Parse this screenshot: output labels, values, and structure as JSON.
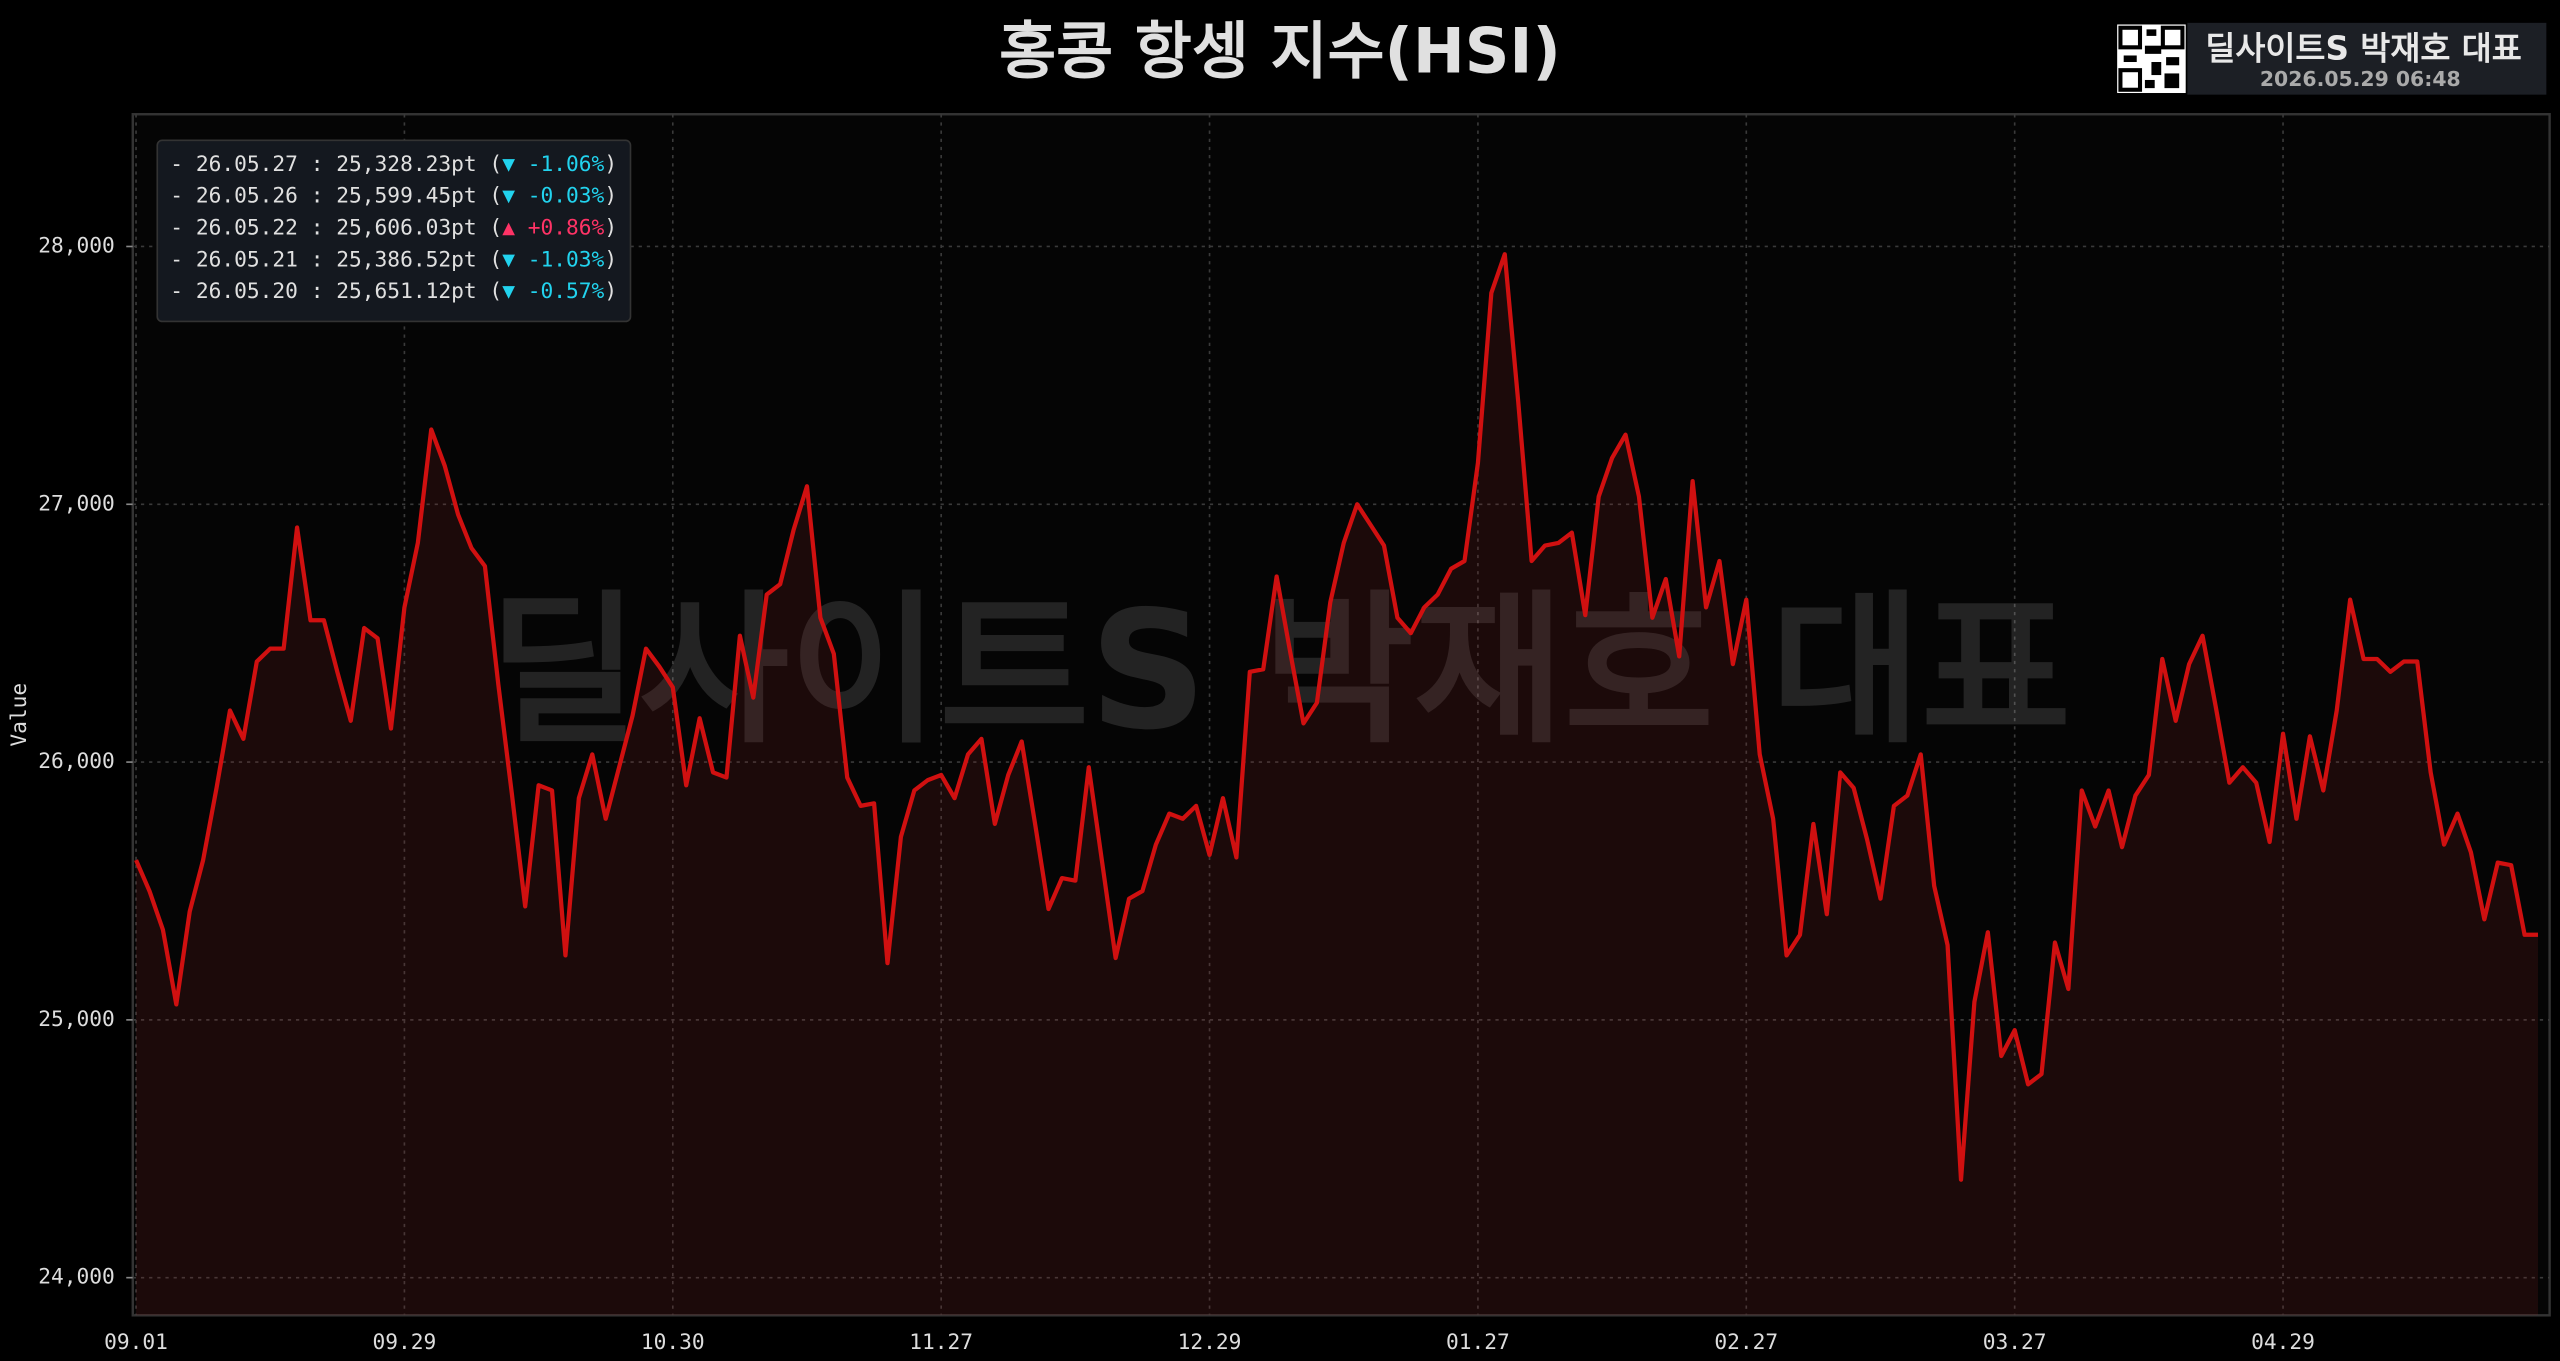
{
  "chart_data": {
    "type": "line",
    "title": "홍콩 항셍 지수(HSI)",
    "y_label": "Value",
    "watermark": "딜사이트S 박재호 대표",
    "badge": {
      "name": "딜사이트S 박재호 대표",
      "timestamp": "2026.05.29 06:48"
    },
    "categories": [
      "09.01",
      null,
      null,
      null,
      null,
      null,
      null,
      null,
      null,
      null,
      null,
      null,
      null,
      null,
      null,
      null,
      null,
      null,
      null,
      null,
      "09.29",
      null,
      null,
      null,
      null,
      null,
      null,
      null,
      null,
      null,
      null,
      null,
      null,
      null,
      null,
      null,
      null,
      null,
      null,
      null,
      "10.30",
      null,
      null,
      null,
      null,
      null,
      null,
      null,
      null,
      null,
      null,
      null,
      null,
      null,
      null,
      null,
      null,
      null,
      null,
      null,
      "11.27",
      null,
      null,
      null,
      null,
      null,
      null,
      null,
      null,
      null,
      null,
      null,
      null,
      null,
      null,
      null,
      null,
      null,
      null,
      null,
      "12.29",
      null,
      null,
      null,
      null,
      null,
      null,
      null,
      null,
      null,
      null,
      null,
      null,
      null,
      null,
      null,
      null,
      null,
      null,
      null,
      "01.27",
      null,
      null,
      null,
      null,
      null,
      null,
      null,
      null,
      null,
      null,
      null,
      null,
      null,
      null,
      null,
      null,
      null,
      null,
      null,
      "02.27",
      null,
      null,
      null,
      null,
      null,
      null,
      null,
      null,
      null,
      null,
      null,
      null,
      null,
      null,
      null,
      null,
      null,
      null,
      null,
      "03.27",
      null,
      null,
      null,
      null,
      null,
      null,
      null,
      null,
      null,
      null,
      null,
      null,
      null,
      null,
      null,
      null,
      null,
      null,
      null,
      "04.29",
      null,
      null,
      null,
      null,
      null,
      null,
      null,
      null,
      null,
      null,
      null,
      null,
      null,
      null,
      null,
      null,
      null,
      null,
      null
    ],
    "series": [
      {
        "color": "#d01010",
        "fill": "rgba(150,40,40,0.16)",
        "values": [
          25620,
          25500,
          25350,
          25060,
          25420,
          25620,
          25900,
          26200,
          26090,
          26390,
          26440,
          26440,
          26910,
          26550,
          26550,
          26350,
          26160,
          26520,
          26480,
          26130,
          26600,
          26850,
          27290,
          27150,
          26960,
          26830,
          26760,
          26300,
          25880,
          25440,
          25910,
          25890,
          25250,
          25860,
          26030,
          25780,
          25980,
          26180,
          26440,
          26370,
          26290,
          25910,
          26170,
          25960,
          25940,
          26490,
          26250,
          26650,
          26690,
          26900,
          27070,
          26560,
          26420,
          25940,
          25830,
          25840,
          25220,
          25710,
          25890,
          25930,
          25950,
          25860,
          26030,
          26090,
          25760,
          25950,
          26080,
          25760,
          25430,
          25550,
          25540,
          25980,
          25610,
          25240,
          25470,
          25500,
          25680,
          25800,
          25780,
          25830,
          25640,
          25860,
          25630,
          26350,
          26360,
          26720,
          26430,
          26150,
          26230,
          26620,
          26850,
          27000,
          26920,
          26840,
          26560,
          26500,
          26600,
          26650,
          26750,
          26780,
          27160,
          27820,
          27970,
          27400,
          26780,
          26840,
          26850,
          26890,
          26570,
          27030,
          27180,
          27270,
          27030,
          26560,
          26710,
          26410,
          27090,
          26600,
          26780,
          26380,
          26630,
          26030,
          25780,
          25250,
          25330,
          25760,
          25410,
          25960,
          25900,
          25700,
          25470,
          25830,
          25870,
          26030,
          25520,
          25290,
          24380,
          25070,
          25340,
          24860,
          24960,
          24750,
          24790,
          25300,
          25120,
          25890,
          25750,
          25890,
          25670,
          25870,
          25950,
          26400,
          26160,
          26380,
          26490,
          26210,
          25920,
          25980,
          25920,
          25690,
          26110,
          25780,
          26100,
          25890,
          26200,
          26630,
          26400,
          26400,
          26350,
          26390,
          26390,
          25960,
          25680,
          25800,
          25650,
          25390,
          25610,
          25600,
          25330,
          25330
        ]
      }
    ],
    "ylim": [
      23854,
      28513
    ],
    "yticks": [
      {
        "value": 24000,
        "label": "24,000"
      },
      {
        "value": 25000,
        "label": "25,000"
      },
      {
        "value": 26000,
        "label": "26,000"
      },
      {
        "value": 27000,
        "label": "27,000"
      },
      {
        "value": 28000,
        "label": "28,000"
      }
    ],
    "grid": true,
    "annotations": [
      {
        "parts": [
          "- 26.05.27 : 25,328.23pt (",
          "▼ -1.06%",
          ")"
        ],
        "color": "#22d3ee"
      },
      {
        "parts": [
          "- 26.05.26 : 25,599.45pt (",
          "▼ -0.03%",
          ")"
        ],
        "color": "#22d3ee"
      },
      {
        "parts": [
          "- 26.05.22 : 25,606.03pt (",
          "▲ +0.86%",
          ")"
        ],
        "color": "#ff3366"
      },
      {
        "parts": [
          "- 26.05.21 : 25,386.52pt (",
          "▼ -1.03%",
          ")"
        ],
        "color": "#22d3ee"
      },
      {
        "parts": [
          "- 26.05.20 : 25,651.12pt (",
          "▼ -0.57%",
          ")"
        ],
        "color": "#22d3ee"
      }
    ]
  }
}
